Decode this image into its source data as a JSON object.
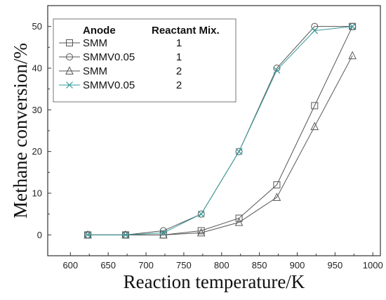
{
  "chart_data": {
    "type": "line",
    "xlabel": "Reaction temperature/K",
    "ylabel": "Methane conversion/%",
    "xlim": [
      570,
      1010
    ],
    "ylim": [
      -5,
      55
    ],
    "xticks": [
      600,
      650,
      700,
      750,
      800,
      850,
      900,
      950,
      1000
    ],
    "yticks": [
      0,
      10,
      20,
      30,
      40,
      50
    ],
    "xtick_labels": [
      "600",
      "650",
      "700",
      "750",
      "800",
      "850",
      "900",
      "950",
      "1000"
    ],
    "ytick_labels": [
      "0",
      "10",
      "20",
      "30",
      "40",
      "50"
    ],
    "x": [
      623,
      673,
      723,
      773,
      823,
      873,
      923,
      973
    ],
    "legend": {
      "placement": "top-left",
      "header_anode": "Anode",
      "header_mix": "Reactant Mix."
    },
    "series": [
      {
        "name": "SMM",
        "mix": "1",
        "marker": "square",
        "color": "#555555",
        "values": [
          0,
          0,
          0,
          1,
          4,
          12,
          31,
          50
        ]
      },
      {
        "name": "SMMV0.05",
        "mix": "1",
        "marker": "circle",
        "color": "#555555",
        "values": [
          0,
          0,
          1,
          5,
          20,
          40,
          50,
          50
        ]
      },
      {
        "name": "SMM",
        "mix": "2",
        "marker": "triangle",
        "color": "#555555",
        "values": [
          0,
          0,
          0,
          0.5,
          3,
          9,
          26,
          43
        ]
      },
      {
        "name": "SMMV0.05",
        "mix": "2",
        "marker": "cross",
        "color": "#3a9a9a",
        "values": [
          0,
          0,
          0.5,
          5,
          20,
          39.5,
          49,
          50
        ]
      }
    ]
  }
}
